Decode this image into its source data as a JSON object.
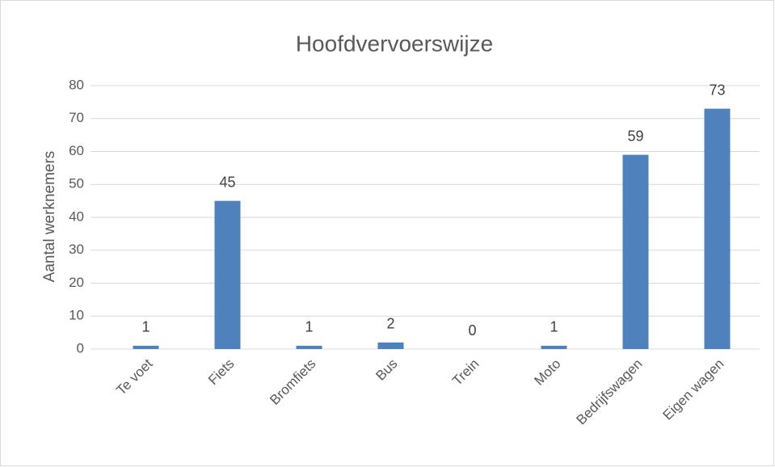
{
  "chart_data": {
    "type": "bar",
    "title": "Hoofdvervoerswijze",
    "y_label": "Aantal werknemers",
    "categories": [
      "Te voet",
      "Fiets",
      "Bromfiets",
      "Bus",
      "Trein",
      "Moto",
      "Bedrijfswagen",
      "Eigen wagen"
    ],
    "values": [
      1,
      45,
      1,
      2,
      0,
      1,
      59,
      73
    ],
    "color": "#4f81bd",
    "ylim": [
      0,
      80
    ],
    "yticks": [
      0,
      10,
      20,
      30,
      40,
      50,
      60,
      70,
      80
    ],
    "grid": true
  }
}
